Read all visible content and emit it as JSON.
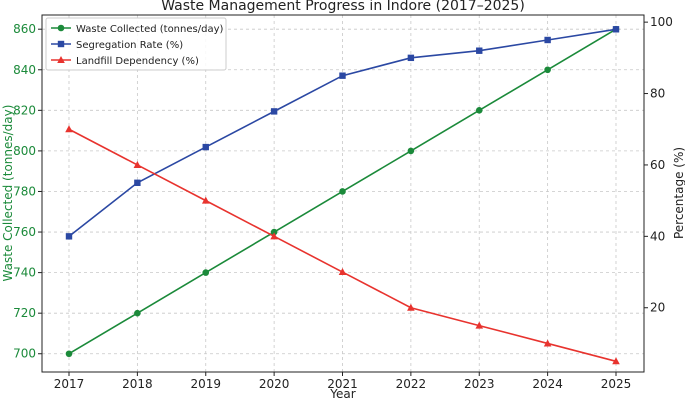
{
  "chart_data": {
    "type": "line",
    "title": "Waste Management Progress in Indore (2017–2025)",
    "xlabel": "Year",
    "ylabel_left": "Waste Collected (tonnes/day)",
    "ylabel_right": "Percentage (%)",
    "x": [
      2017,
      2018,
      2019,
      2020,
      2021,
      2022,
      2023,
      2024,
      2025
    ],
    "x_ticks": [
      "2017",
      "2018",
      "2019",
      "2020",
      "2021",
      "2022",
      "2023",
      "2024",
      "2025"
    ],
    "ylim_left": [
      691,
      867
    ],
    "yticks_left": [
      700,
      720,
      740,
      760,
      780,
      800,
      820,
      840,
      860
    ],
    "ylim_right": [
      2,
      102
    ],
    "yticks_right": [
      20,
      40,
      60,
      80,
      100
    ],
    "grid": true,
    "legend_position": "top-left",
    "series": [
      {
        "name": "Waste Collected (tonnes/day)",
        "axis": "left",
        "color": "#1b8a3a",
        "marker": "circle",
        "values": [
          700,
          720,
          740,
          760,
          780,
          800,
          820,
          840,
          860
        ]
      },
      {
        "name": "Segregation Rate (%)",
        "axis": "right",
        "color": "#2b48a3",
        "marker": "square",
        "values": [
          40,
          55,
          65,
          75,
          85,
          90,
          92,
          95,
          98
        ]
      },
      {
        "name": "Landfill Dependency (%)",
        "axis": "right",
        "color": "#e8332e",
        "marker": "triangle",
        "values": [
          70,
          60,
          50,
          40,
          30,
          20,
          15,
          10,
          5
        ]
      }
    ]
  }
}
